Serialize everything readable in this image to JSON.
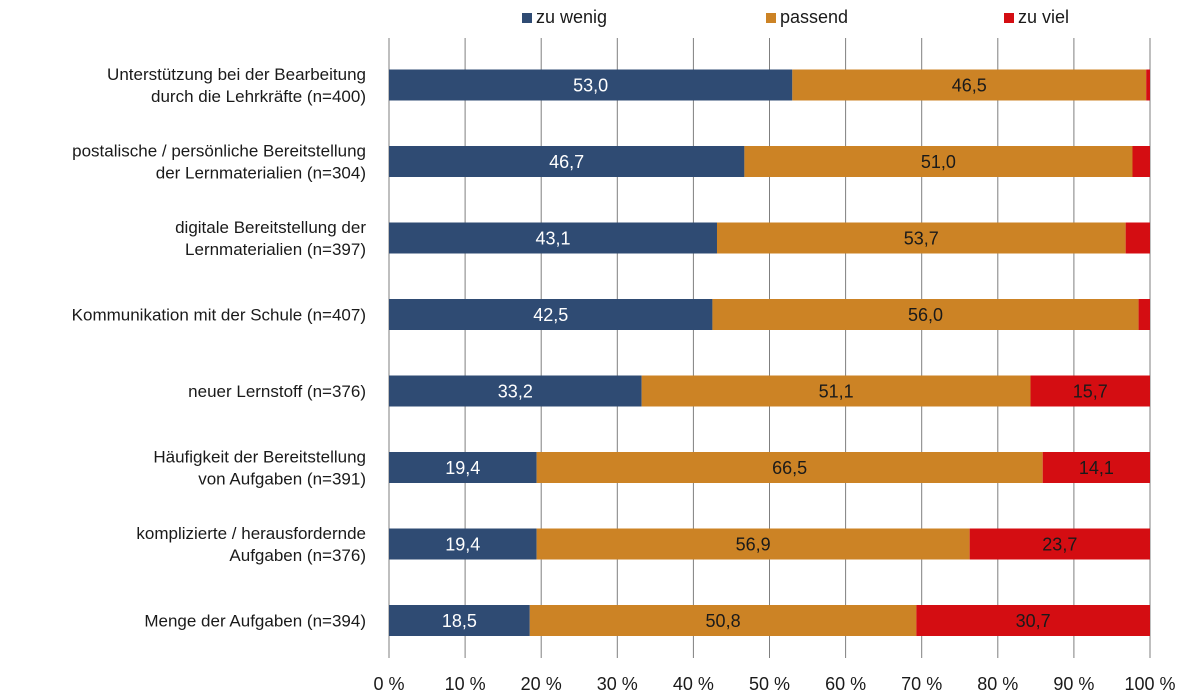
{
  "chart_data": {
    "type": "bar",
    "orientation": "horizontal",
    "stacked": true,
    "categories": [
      [
        "Unterstützung bei der Bearbeitung",
        "durch die Lehrkräfte (n=400)"
      ],
      [
        "postalische / persönliche Bereitstellung",
        "der Lernmaterialien (n=304)"
      ],
      [
        "digitale Bereitstellung der",
        "Lernmaterialien (n=397)"
      ],
      [
        "Kommunikation mit der Schule (n=407)"
      ],
      [
        "neuer Lernstoff (n=376)"
      ],
      [
        "Häufigkeit der Bereitstellung",
        "von Aufgaben (n=391)"
      ],
      [
        "komplizierte / herausfordernde",
        "Aufgaben (n=376)"
      ],
      [
        "Menge der Aufgaben (n=394)"
      ]
    ],
    "series": [
      {
        "name": "zu wenig",
        "color": "#2f4b73",
        "label_color": "#ffffff",
        "values": [
          53.0,
          46.7,
          43.1,
          42.5,
          33.2,
          19.4,
          19.4,
          18.5
        ],
        "labels": [
          "53,0",
          "46,7",
          "43,1",
          "42,5",
          "33,2",
          "19,4",
          "19,4",
          "18,5"
        ]
      },
      {
        "name": "passend",
        "color": "#cc8325",
        "label_color": "#1a1a1a",
        "values": [
          46.5,
          51.0,
          53.7,
          56.0,
          51.1,
          66.5,
          56.9,
          50.8
        ],
        "labels": [
          "46,5",
          "51,0",
          "53,7",
          "56,0",
          "51,1",
          "66,5",
          "56,9",
          "50,8"
        ]
      },
      {
        "name": "zu viel",
        "color": "#d40d12",
        "label_color": "#1a1a1a",
        "values": [
          0.5,
          2.3,
          3.2,
          1.5,
          15.7,
          14.1,
          23.7,
          30.7
        ],
        "labels": [
          "",
          "",
          "",
          "",
          "15,7",
          "14,1",
          "23,7",
          "30,7"
        ]
      }
    ],
    "xlim": [
      0,
      100
    ],
    "xticks": [
      0,
      10,
      20,
      30,
      40,
      50,
      60,
      70,
      80,
      90,
      100
    ],
    "xtick_labels": [
      "0 %",
      "10 %",
      "20 %",
      "30 %",
      "40 %",
      "50 %",
      "60 %",
      "70 %",
      "80 %",
      "90 %",
      "100 %"
    ],
    "grid": true,
    "gridline_color": "#7f7f7f",
    "legend_position": "top"
  }
}
